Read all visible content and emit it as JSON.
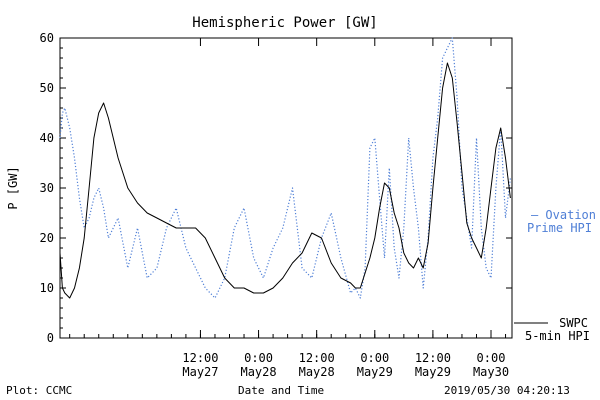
{
  "footer": {
    "left": "Plot: CCMC",
    "center": "Date and Time",
    "right": "2019/05/30 04:20:13"
  },
  "colors": {
    "background": "#ffffff",
    "axis": "#000000",
    "swpc": "#000000",
    "ovation": "#4f7fd6"
  },
  "chart_data": {
    "type": "line",
    "title": "Hemispheric Power [GW]",
    "xlabel": "Date and Time",
    "ylabel": "P [GW]",
    "ylim": [
      0,
      60
    ],
    "yticks": [
      0,
      10,
      20,
      30,
      40,
      50,
      60
    ],
    "xlim": [
      "2019-05-26T07:00",
      "2019-05-30T04:20"
    ],
    "xticks": [
      {
        "t": "2019-05-27T12:00",
        "time": "12:00",
        "date": "May27"
      },
      {
        "t": "2019-05-28T00:00",
        "time": "0:00",
        "date": "May28"
      },
      {
        "t": "2019-05-28T12:00",
        "time": "12:00",
        "date": "May28"
      },
      {
        "t": "2019-05-29T00:00",
        "time": "0:00",
        "date": "May29"
      },
      {
        "t": "2019-05-29T12:00",
        "time": "12:00",
        "date": "May29"
      },
      {
        "t": "2019-05-30T00:00",
        "time": "0:00",
        "date": "May30"
      }
    ],
    "grid": false,
    "legend_position": "right",
    "series": [
      {
        "name": "SWPC 5-min HPI",
        "style": "solid",
        "color": "#000000",
        "x": [
          "2019-05-26T07:00",
          "2019-05-26T07:30",
          "2019-05-26T08:00",
          "2019-05-26T09:00",
          "2019-05-26T10:00",
          "2019-05-26T11:00",
          "2019-05-26T12:00",
          "2019-05-26T13:00",
          "2019-05-26T14:00",
          "2019-05-26T15:00",
          "2019-05-26T16:00",
          "2019-05-26T17:00",
          "2019-05-26T19:00",
          "2019-05-26T21:00",
          "2019-05-26T23:00",
          "2019-05-27T01:00",
          "2019-05-27T03:00",
          "2019-05-27T05:00",
          "2019-05-27T07:00",
          "2019-05-27T09:00",
          "2019-05-27T11:00",
          "2019-05-27T13:00",
          "2019-05-27T15:00",
          "2019-05-27T17:00",
          "2019-05-27T19:00",
          "2019-05-27T21:00",
          "2019-05-27T23:00",
          "2019-05-28T01:00",
          "2019-05-28T03:00",
          "2019-05-28T05:00",
          "2019-05-28T07:00",
          "2019-05-28T09:00",
          "2019-05-28T11:00",
          "2019-05-28T13:00",
          "2019-05-28T15:00",
          "2019-05-28T17:00",
          "2019-05-28T19:00",
          "2019-05-28T20:00",
          "2019-05-28T21:00",
          "2019-05-28T22:00",
          "2019-05-28T23:00",
          "2019-05-29T00:00",
          "2019-05-29T01:00",
          "2019-05-29T02:00",
          "2019-05-29T03:00",
          "2019-05-29T04:00",
          "2019-05-29T05:00",
          "2019-05-29T06:00",
          "2019-05-29T07:00",
          "2019-05-29T08:00",
          "2019-05-29T09:00",
          "2019-05-29T10:00",
          "2019-05-29T11:00",
          "2019-05-29T12:00",
          "2019-05-29T13:00",
          "2019-05-29T14:00",
          "2019-05-29T15:00",
          "2019-05-29T16:00",
          "2019-05-29T17:00",
          "2019-05-29T18:00",
          "2019-05-29T19:00",
          "2019-05-29T20:00",
          "2019-05-29T21:00",
          "2019-05-29T22:00",
          "2019-05-29T23:00",
          "2019-05-30T00:00",
          "2019-05-30T01:00",
          "2019-05-30T02:00",
          "2019-05-30T03:00",
          "2019-05-30T04:00"
        ],
        "y": [
          17,
          10,
          9,
          8,
          10,
          14,
          20,
          30,
          40,
          45,
          47,
          44,
          36,
          30,
          27,
          25,
          24,
          23,
          22,
          22,
          22,
          20,
          16,
          12,
          10,
          10,
          9,
          9,
          10,
          12,
          15,
          17,
          21,
          20,
          15,
          12,
          11,
          10,
          10,
          13,
          16,
          20,
          26,
          31,
          30,
          25,
          22,
          17,
          15,
          14,
          16,
          14,
          19,
          30,
          40,
          50,
          55,
          52,
          43,
          33,
          23,
          20,
          18,
          16,
          22,
          30,
          38,
          42,
          36,
          28
        ]
      },
      {
        "name": "Ovation Prime HPI",
        "style": "dotted",
        "color": "#4f7fd6",
        "x": [
          "2019-05-26T07:00",
          "2019-05-26T07:30",
          "2019-05-26T08:00",
          "2019-05-26T09:00",
          "2019-05-26T10:00",
          "2019-05-26T11:00",
          "2019-05-26T12:00",
          "2019-05-26T13:00",
          "2019-05-26T14:00",
          "2019-05-26T15:00",
          "2019-05-26T16:00",
          "2019-05-26T17:00",
          "2019-05-26T19:00",
          "2019-05-26T21:00",
          "2019-05-26T23:00",
          "2019-05-27T01:00",
          "2019-05-27T03:00",
          "2019-05-27T05:00",
          "2019-05-27T07:00",
          "2019-05-27T09:00",
          "2019-05-27T11:00",
          "2019-05-27T13:00",
          "2019-05-27T15:00",
          "2019-05-27T17:00",
          "2019-05-27T19:00",
          "2019-05-27T21:00",
          "2019-05-27T23:00",
          "2019-05-28T01:00",
          "2019-05-28T03:00",
          "2019-05-28T05:00",
          "2019-05-28T07:00",
          "2019-05-28T09:00",
          "2019-05-28T11:00",
          "2019-05-28T13:00",
          "2019-05-28T15:00",
          "2019-05-28T17:00",
          "2019-05-28T19:00",
          "2019-05-28T20:00",
          "2019-05-28T21:00",
          "2019-05-28T22:00",
          "2019-05-28T23:00",
          "2019-05-29T00:00",
          "2019-05-29T01:00",
          "2019-05-29T02:00",
          "2019-05-29T03:00",
          "2019-05-29T04:00",
          "2019-05-29T05:00",
          "2019-05-29T06:00",
          "2019-05-29T07:00",
          "2019-05-29T08:00",
          "2019-05-29T09:00",
          "2019-05-29T10:00",
          "2019-05-29T11:00",
          "2019-05-29T12:00",
          "2019-05-29T13:00",
          "2019-05-29T14:00",
          "2019-05-29T15:00",
          "2019-05-29T16:00",
          "2019-05-29T17:00",
          "2019-05-29T18:00",
          "2019-05-29T19:00",
          "2019-05-29T20:00",
          "2019-05-29T21:00",
          "2019-05-29T22:00",
          "2019-05-29T23:00",
          "2019-05-30T00:00",
          "2019-05-30T01:00",
          "2019-05-30T02:00",
          "2019-05-30T03:00",
          "2019-05-30T04:00"
        ],
        "y": [
          40,
          45,
          46,
          42,
          36,
          28,
          22,
          24,
          28,
          30,
          26,
          20,
          24,
          14,
          22,
          12,
          14,
          22,
          26,
          18,
          14,
          10,
          8,
          12,
          22,
          26,
          16,
          12,
          18,
          22,
          30,
          14,
          12,
          20,
          25,
          16,
          9,
          10,
          8,
          14,
          38,
          40,
          28,
          16,
          34,
          18,
          12,
          22,
          40,
          30,
          22,
          10,
          20,
          36,
          44,
          56,
          58,
          60,
          48,
          30,
          24,
          18,
          40,
          22,
          14,
          12,
          30,
          42,
          24,
          32
        ]
      }
    ]
  }
}
